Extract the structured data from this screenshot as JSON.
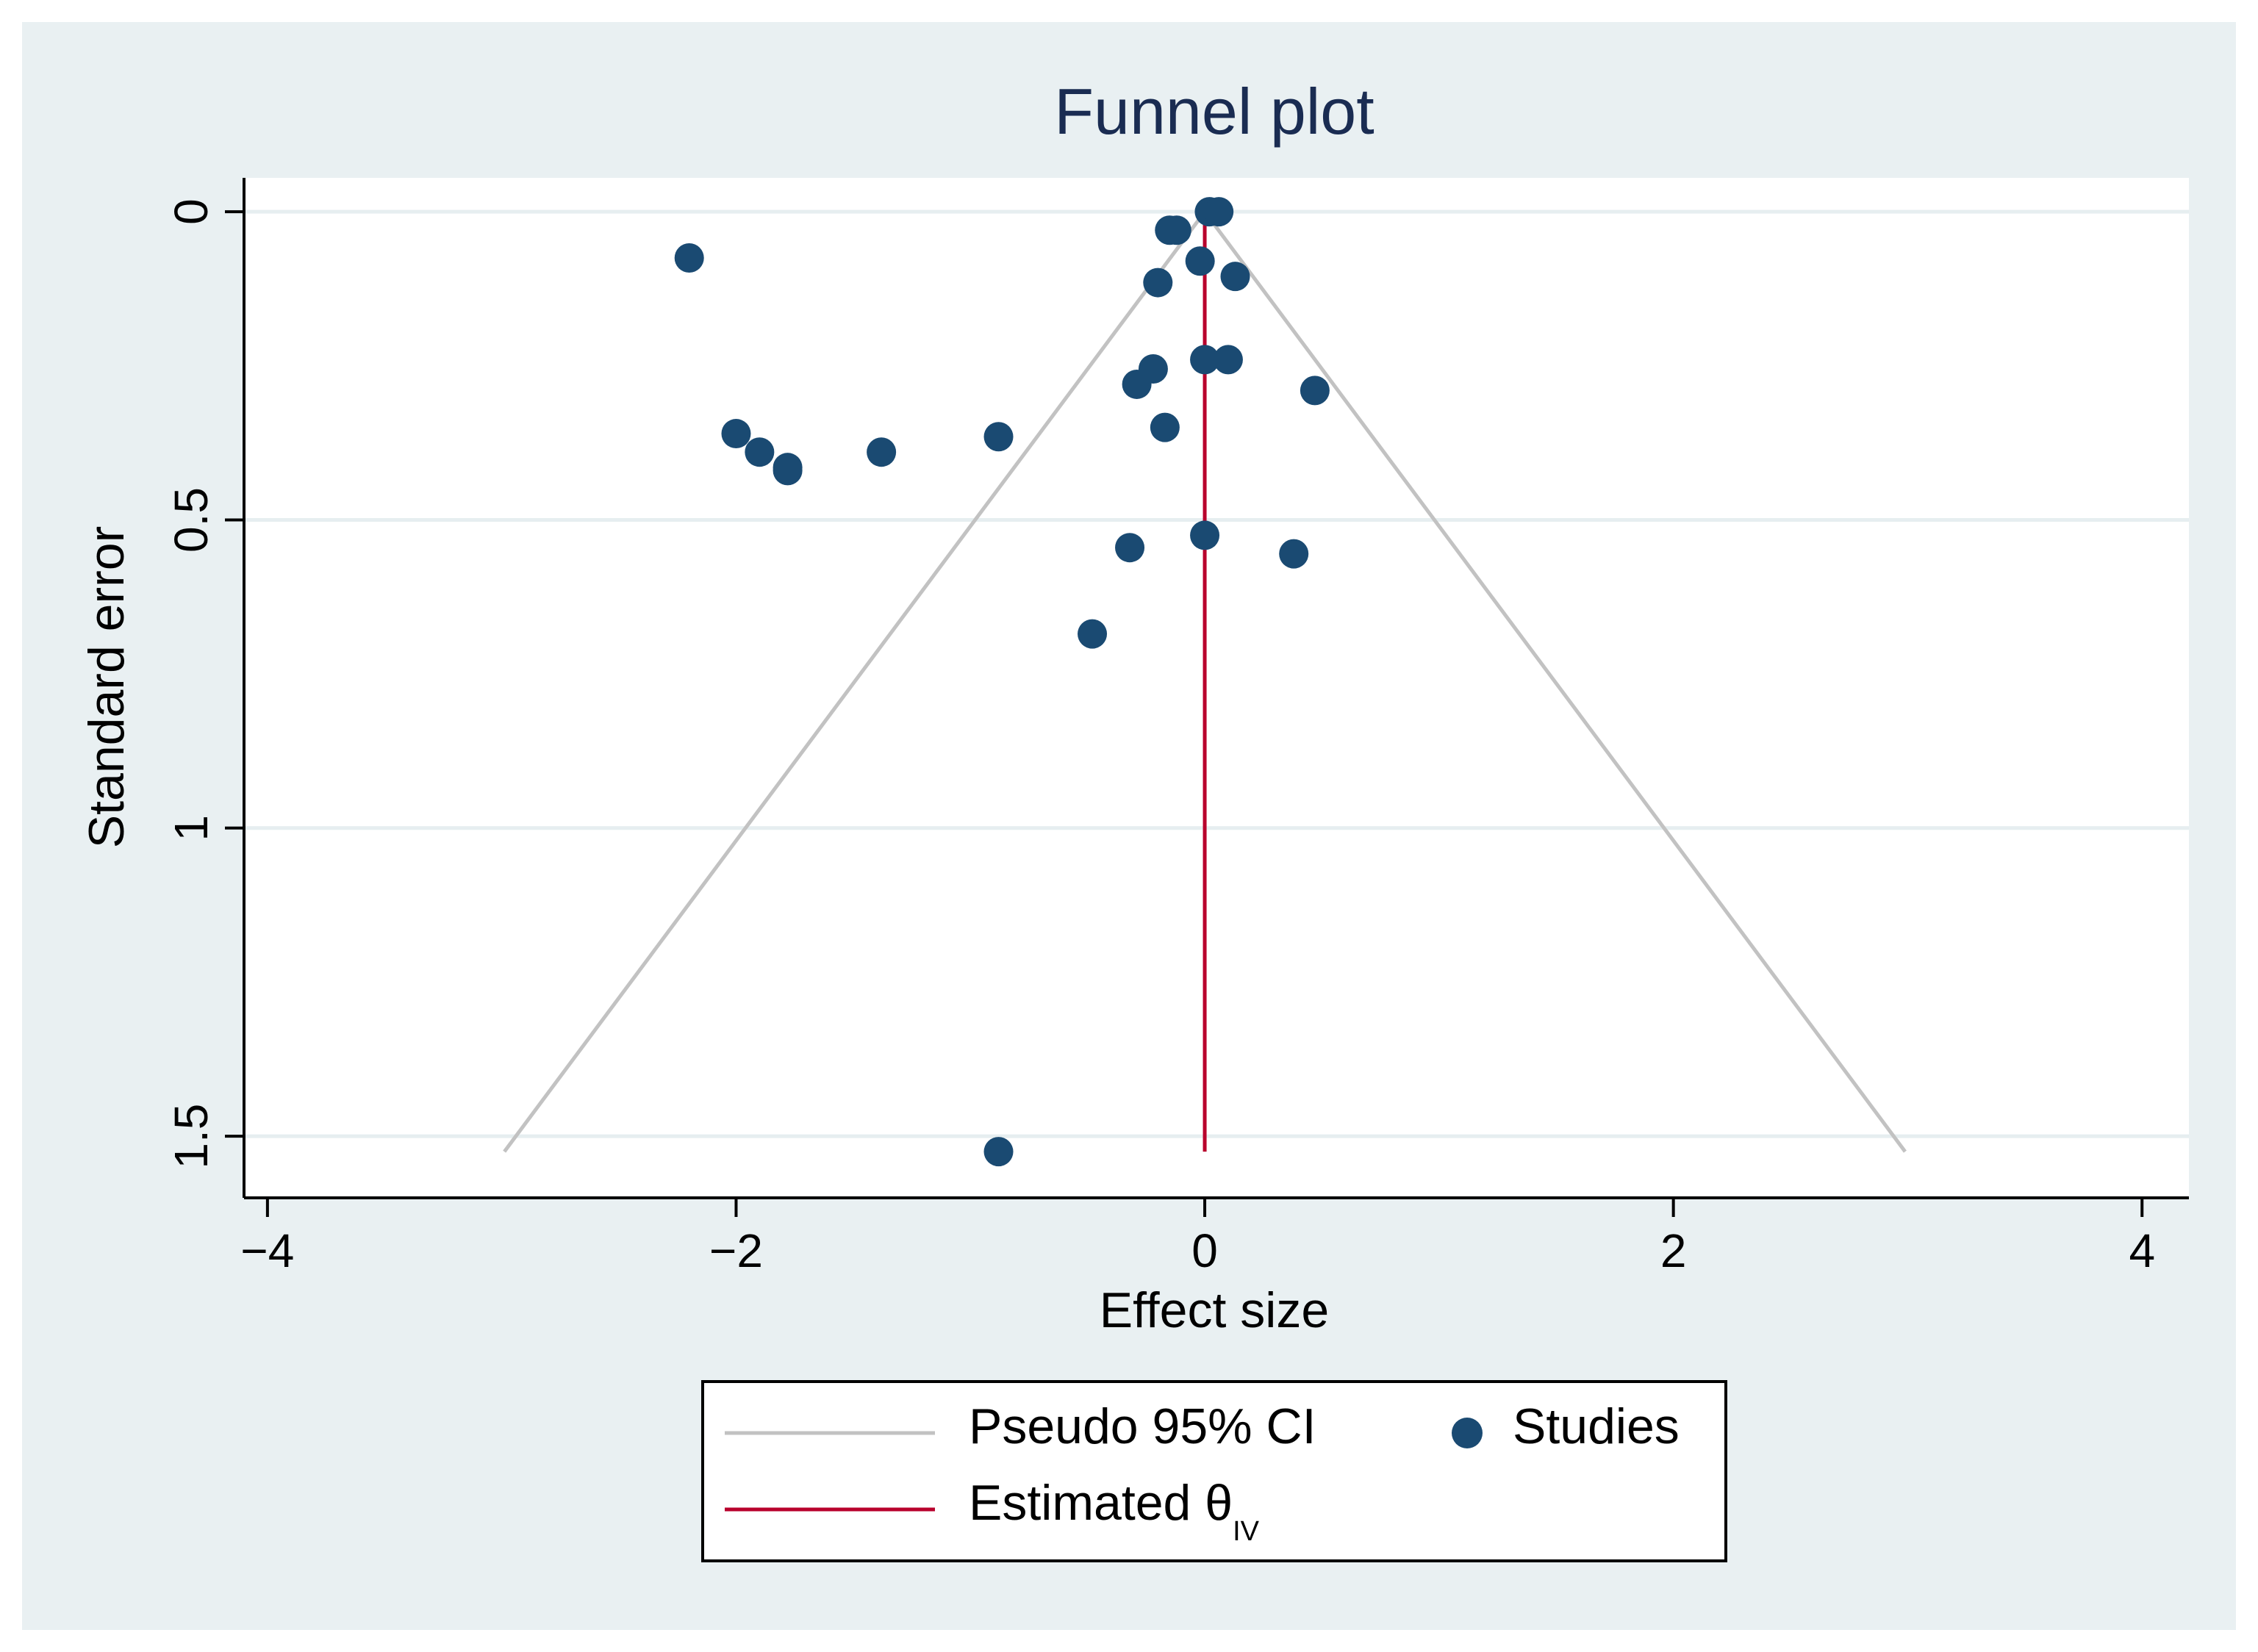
{
  "chart_data": {
    "type": "scatter",
    "title": "Funnel plot",
    "xlabel": "Effect size",
    "ylabel": "Standard error",
    "xlim": [
      -4.1,
      4.2
    ],
    "ylim": [
      -0.055,
      1.6
    ],
    "y_inverted": true,
    "x_ticks": [
      -4,
      -2,
      0,
      2,
      4
    ],
    "x_tick_labels": [
      "−4",
      "−2",
      "0",
      "2",
      "4"
    ],
    "y_ticks": [
      0,
      0.5,
      1,
      1.5
    ],
    "y_tick_labels": [
      "0",
      "0.5",
      "1",
      "1.5"
    ],
    "grid": true,
    "estimated_effect": 0.0,
    "funnel_max_se": 1.525,
    "funnel_z": 1.96,
    "series": [
      {
        "name": "Studies",
        "color": "#1a4a72",
        "points": [
          {
            "x": 0.02,
            "y": 0.0
          },
          {
            "x": 0.06,
            "y": 0.0
          },
          {
            "x": -0.15,
            "y": 0.03
          },
          {
            "x": -0.12,
            "y": 0.03
          },
          {
            "x": -2.2,
            "y": 0.075
          },
          {
            "x": -0.02,
            "y": 0.08
          },
          {
            "x": 0.13,
            "y": 0.105
          },
          {
            "x": -0.2,
            "y": 0.115
          },
          {
            "x": 0.0,
            "y": 0.24
          },
          {
            "x": 0.1,
            "y": 0.24
          },
          {
            "x": -0.22,
            "y": 0.255
          },
          {
            "x": -0.29,
            "y": 0.28
          },
          {
            "x": 0.47,
            "y": 0.29
          },
          {
            "x": -0.17,
            "y": 0.35
          },
          {
            "x": -2.0,
            "y": 0.36
          },
          {
            "x": -1.9,
            "y": 0.39
          },
          {
            "x": -1.78,
            "y": 0.415
          },
          {
            "x": -1.78,
            "y": 0.42
          },
          {
            "x": -1.38,
            "y": 0.39
          },
          {
            "x": -0.88,
            "y": 0.365
          },
          {
            "x": -0.32,
            "y": 0.545
          },
          {
            "x": 0.0,
            "y": 0.525
          },
          {
            "x": 0.38,
            "y": 0.555
          },
          {
            "x": -0.48,
            "y": 0.685
          },
          {
            "x": -0.88,
            "y": 1.525
          }
        ]
      }
    ],
    "legend": {
      "position": "bottom",
      "items": [
        {
          "label": "Pseudo 95% CI",
          "kind": "line",
          "color": "#c2c2c2"
        },
        {
          "label": "Studies",
          "kind": "marker",
          "color": "#1a4a72"
        },
        {
          "label": "Estimated θ",
          "subscript": "IV",
          "kind": "line",
          "color": "#b8002c"
        }
      ]
    }
  },
  "colors": {
    "outer_background": "#e9f0f2",
    "plot_background": "#ffffff",
    "grid": "#e6eef0",
    "funnel": "#c2c2c2",
    "estimate": "#b8002c",
    "marker": "#1a4a72",
    "title": "#1a2c52"
  }
}
